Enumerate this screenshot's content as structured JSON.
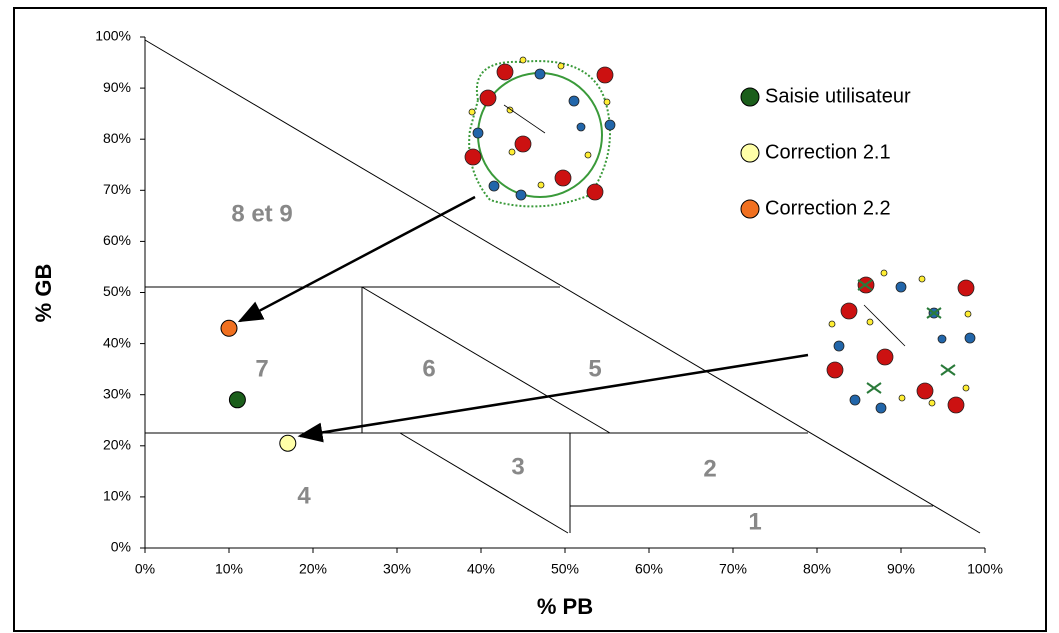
{
  "chart_data": {
    "type": "scatter",
    "xlabel": "% PB",
    "ylabel": "% GB",
    "xlim": [
      0,
      100
    ],
    "ylim": [
      0,
      100
    ],
    "xticks": [
      {
        "value": 0,
        "label": "0%"
      },
      {
        "value": 10,
        "label": "10%"
      },
      {
        "value": 20,
        "label": "20%"
      },
      {
        "value": 30,
        "label": "30%"
      },
      {
        "value": 40,
        "label": "40%"
      },
      {
        "value": 50,
        "label": "50%"
      },
      {
        "value": 60,
        "label": "60%"
      },
      {
        "value": 70,
        "label": "70%"
      },
      {
        "value": 80,
        "label": "80%"
      },
      {
        "value": 90,
        "label": "90%"
      },
      {
        "value": 100,
        "label": "100%"
      }
    ],
    "yticks": [
      {
        "value": 0,
        "label": "0%"
      },
      {
        "value": 10,
        "label": "10%"
      },
      {
        "value": 20,
        "label": "20%"
      },
      {
        "value": 30,
        "label": "30%"
      },
      {
        "value": 40,
        "label": "40%"
      },
      {
        "value": 50,
        "label": "50%"
      },
      {
        "value": 60,
        "label": "60%"
      },
      {
        "value": 70,
        "label": "70%"
      },
      {
        "value": 80,
        "label": "80%"
      },
      {
        "value": 90,
        "label": "90%"
      },
      {
        "value": 100,
        "label": "100%"
      }
    ],
    "series": [
      {
        "name": "Saisie utilisateur",
        "color": "#1b5e1b",
        "x": [
          11
        ],
        "values": [
          29
        ]
      },
      {
        "name": "Correction 2.1",
        "color": "#ffffa8",
        "x": [
          17
        ],
        "values": [
          20.5
        ]
      },
      {
        "name": "Correction 2.2",
        "color": "#f07020",
        "x": [
          10
        ],
        "values": [
          43
        ]
      }
    ],
    "region_labels": [
      "8 et 9",
      "7",
      "6",
      "5",
      "4",
      "3",
      "2",
      "1"
    ]
  }
}
